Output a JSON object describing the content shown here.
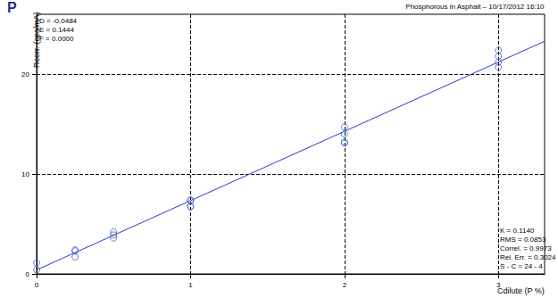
{
  "chart_data": {
    "type": "scatter",
    "title": "P",
    "subtitle": "Phosphorous in Asphalt – 10/17/2012 16:10",
    "x_label": "Cdilute (P %)",
    "y_label": "Rcorr. (cps/mA)",
    "annotations": [
      [
        "D = -0.0484",
        "E = 0.1444",
        "F = 0.0000"
      ],
      [
        "K = 0.1140",
        "RMS = 0.0853",
        "Correl. = 0.9973",
        "Rel. Err. = 0.3024",
        "S - C = 24 - 4"
      ]
    ],
    "series": [
      {
        "type": "scatter",
        "marker": "circle",
        "color": "#3f5fc4",
        "x": [
          0,
          0,
          0.25,
          0.25,
          0.25,
          0.5,
          0.5,
          0.5,
          1,
          1,
          1,
          1,
          2,
          2,
          2,
          2,
          3,
          3,
          3,
          3
        ],
        "values": [
          1.1,
          0.4,
          2.4,
          2.3,
          1.7,
          4.2,
          3.9,
          3.6,
          7.4,
          7.3,
          6.8,
          6.7,
          14.7,
          14.0,
          13.2,
          13.1,
          22.4,
          21.8,
          21.2,
          20.7
        ]
      },
      {
        "type": "line",
        "line_style": "solid",
        "color": "#2a3ccc",
        "x": [
          0,
          3.3
        ],
        "values": [
          0.4,
          23.3
        ]
      }
    ],
    "xlim": [
      0,
      3.3
    ],
    "xticks": [
      0,
      1,
      2,
      3
    ],
    "ylim": [
      0,
      26
    ],
    "yticks": [
      0,
      10,
      20
    ],
    "grid": true
  }
}
